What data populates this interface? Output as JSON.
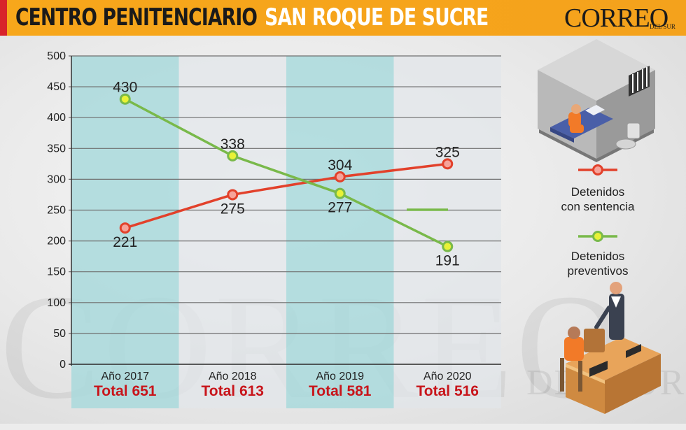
{
  "header": {
    "title_part1": "CENTRO PENITENCIARIO",
    "title_part2": "SAN ROQUE DE SUCRE",
    "logo": "CORREO",
    "logo_sub": "DEL SUR"
  },
  "watermark": {
    "text": "CORREO",
    "sub": "DEL SUR"
  },
  "colors": {
    "red_series": "#e2412b",
    "green_series": "#79b94a",
    "band_teal": "#a9d9dc",
    "totals": "#c8151b",
    "orange": "#f6a41b"
  },
  "chart_data": {
    "type": "line",
    "categories": [
      "Año 2017",
      "Año 2018",
      "Año 2019",
      "Año 2020"
    ],
    "totals": [
      "Total 651",
      "Total 613",
      "Total 581",
      "Total 516"
    ],
    "series": [
      {
        "name": "Detenidos con sentencia",
        "name_lines": [
          "Detenidos",
          "con sentencia"
        ],
        "values": [
          221,
          275,
          304,
          325
        ],
        "color": "#e2412b"
      },
      {
        "name": "Detenidos preventivos",
        "name_lines": [
          "Detenidos",
          "preventivos"
        ],
        "values": [
          430,
          338,
          277,
          191
        ],
        "color": "#79b94a"
      }
    ],
    "yticks": [
      0,
      50,
      100,
      150,
      200,
      250,
      300,
      350,
      400,
      450,
      500
    ],
    "ylim": [
      0,
      500
    ],
    "grid": true,
    "legend_position": "right",
    "title": "",
    "xlabel": "",
    "ylabel": ""
  }
}
